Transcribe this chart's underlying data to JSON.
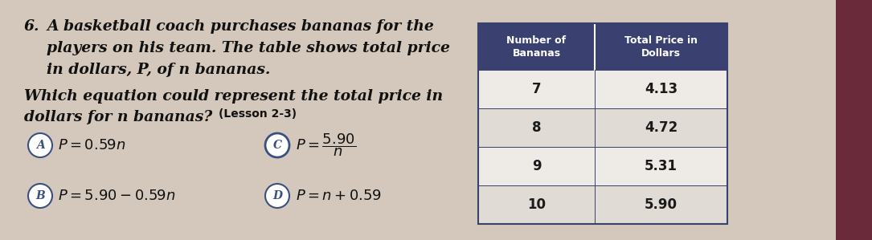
{
  "bg_color": "#d4c8bc",
  "left_bg_color": "#cfc3b7",
  "right_bg_color": "#c8bdb1",
  "far_right_color": "#6b2a3a",
  "question_number": "6.",
  "question_text_line1": "A basketball coach purchases bananas for the",
  "question_text_line2": "players on his team. The table shows total price",
  "question_text_line3": "in dollars, P, of n bananas.",
  "which_line1": "Which equation could represent the total price in",
  "which_line2": "dollars for n bananas?",
  "lesson_label": "(Lesson 2-3)",
  "table_header_col1": "Number of\nBananas",
  "table_header_col2": "Total Price in\nDollars",
  "table_header_bg": "#3a4070",
  "table_header_color": "#ffffff",
  "table_rows": [
    [
      7,
      "4.13"
    ],
    [
      8,
      "4.72"
    ],
    [
      9,
      "5.31"
    ],
    [
      10,
      "5.90"
    ]
  ],
  "table_row_bg_light": "#eeeae6",
  "table_row_bg_dark": "#e0dbd5",
  "table_border_color": "#3a4070",
  "circle_color": "#3a5080",
  "text_color": "#111111"
}
